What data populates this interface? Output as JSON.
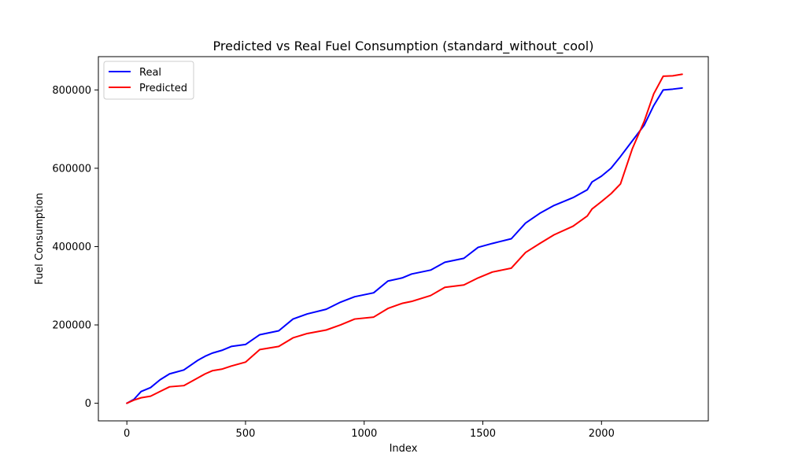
{
  "chart_data": {
    "type": "line",
    "title": "Predicted vs Real Fuel Consumption (standard_without_cool)",
    "xlabel": "Index",
    "ylabel": "Fuel Consumption",
    "xlim": [
      -120,
      2450
    ],
    "ylim": [
      -45000,
      885000
    ],
    "x_ticks": [
      0,
      500,
      1000,
      1500,
      2000
    ],
    "y_ticks": [
      0,
      200000,
      400000,
      600000,
      800000
    ],
    "grid": false,
    "legend_position": "top-left",
    "series": [
      {
        "name": "Real",
        "color": "#0000ff",
        "x": [
          0,
          30,
          60,
          100,
          140,
          180,
          240,
          300,
          330,
          360,
          400,
          440,
          500,
          560,
          640,
          700,
          760,
          840,
          900,
          960,
          1040,
          1100,
          1160,
          1200,
          1280,
          1340,
          1420,
          1480,
          1540,
          1620,
          1680,
          1740,
          1800,
          1880,
          1940,
          1960,
          2000,
          2040,
          2080,
          2130,
          2180,
          2220,
          2260,
          2300,
          2340
        ],
        "y": [
          0,
          10000,
          30000,
          40000,
          60000,
          75000,
          85000,
          110000,
          120000,
          128000,
          135000,
          145000,
          150000,
          175000,
          185000,
          215000,
          228000,
          240000,
          258000,
          272000,
          282000,
          312000,
          320000,
          330000,
          340000,
          360000,
          370000,
          398000,
          408000,
          420000,
          460000,
          485000,
          505000,
          525000,
          545000,
          565000,
          580000,
          600000,
          630000,
          670000,
          710000,
          760000,
          800000,
          802000,
          805000
        ]
      },
      {
        "name": "Predicted",
        "color": "#ff0000",
        "x": [
          0,
          30,
          60,
          100,
          140,
          180,
          240,
          300,
          330,
          360,
          400,
          440,
          500,
          560,
          640,
          700,
          760,
          840,
          900,
          960,
          1040,
          1100,
          1160,
          1200,
          1280,
          1340,
          1420,
          1480,
          1540,
          1620,
          1680,
          1740,
          1800,
          1880,
          1940,
          1960,
          2000,
          2040,
          2080,
          2130,
          2180,
          2220,
          2260,
          2300,
          2340
        ],
        "y": [
          0,
          8000,
          14000,
          18000,
          30000,
          42000,
          45000,
          65000,
          75000,
          83000,
          87000,
          95000,
          105000,
          137000,
          145000,
          167000,
          178000,
          187000,
          200000,
          215000,
          220000,
          242000,
          255000,
          260000,
          275000,
          296000,
          302000,
          320000,
          335000,
          345000,
          385000,
          408000,
          430000,
          452000,
          478000,
          496000,
          515000,
          535000,
          560000,
          650000,
          720000,
          790000,
          835000,
          836000,
          840000
        ]
      }
    ]
  }
}
